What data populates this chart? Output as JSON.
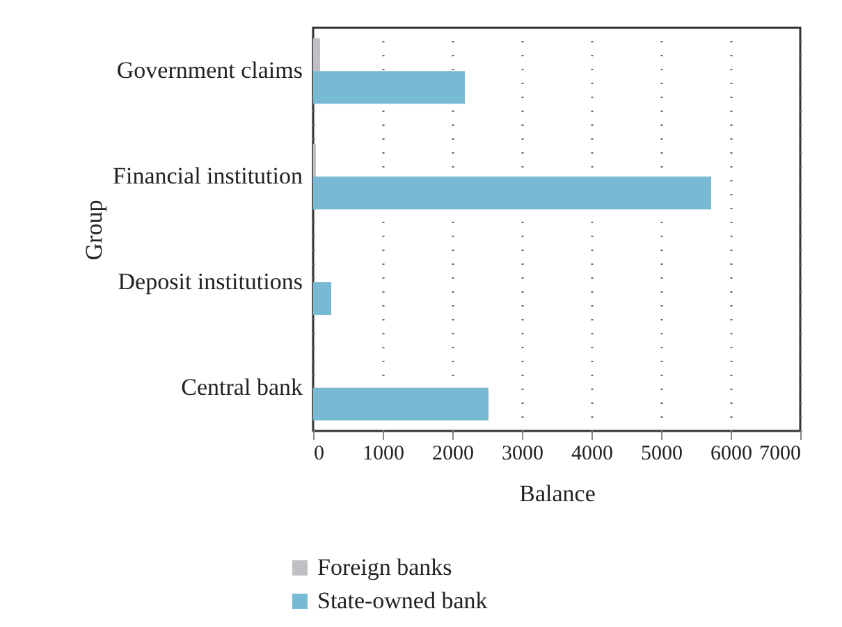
{
  "chart_data": {
    "type": "bar",
    "orientation": "horizontal",
    "xlabel": "Balance",
    "ylabel": "Group",
    "categories": [
      "Government claims",
      "Financial institution",
      "Deposit institutions",
      "Central bank"
    ],
    "series": [
      {
        "name": "Foreign banks",
        "color": "#c0c0c4",
        "values": [
          100,
          40,
          0,
          0
        ]
      },
      {
        "name": "State-owned bank",
        "color": "#78b9d4",
        "values": [
          2180,
          5720,
          260,
          2520
        ]
      }
    ],
    "xlim": [
      0,
      7000
    ],
    "xticks": [
      0,
      1000,
      2000,
      3000,
      4000,
      5000,
      6000,
      7000
    ],
    "grid": "x",
    "legend": "bottom left"
  }
}
